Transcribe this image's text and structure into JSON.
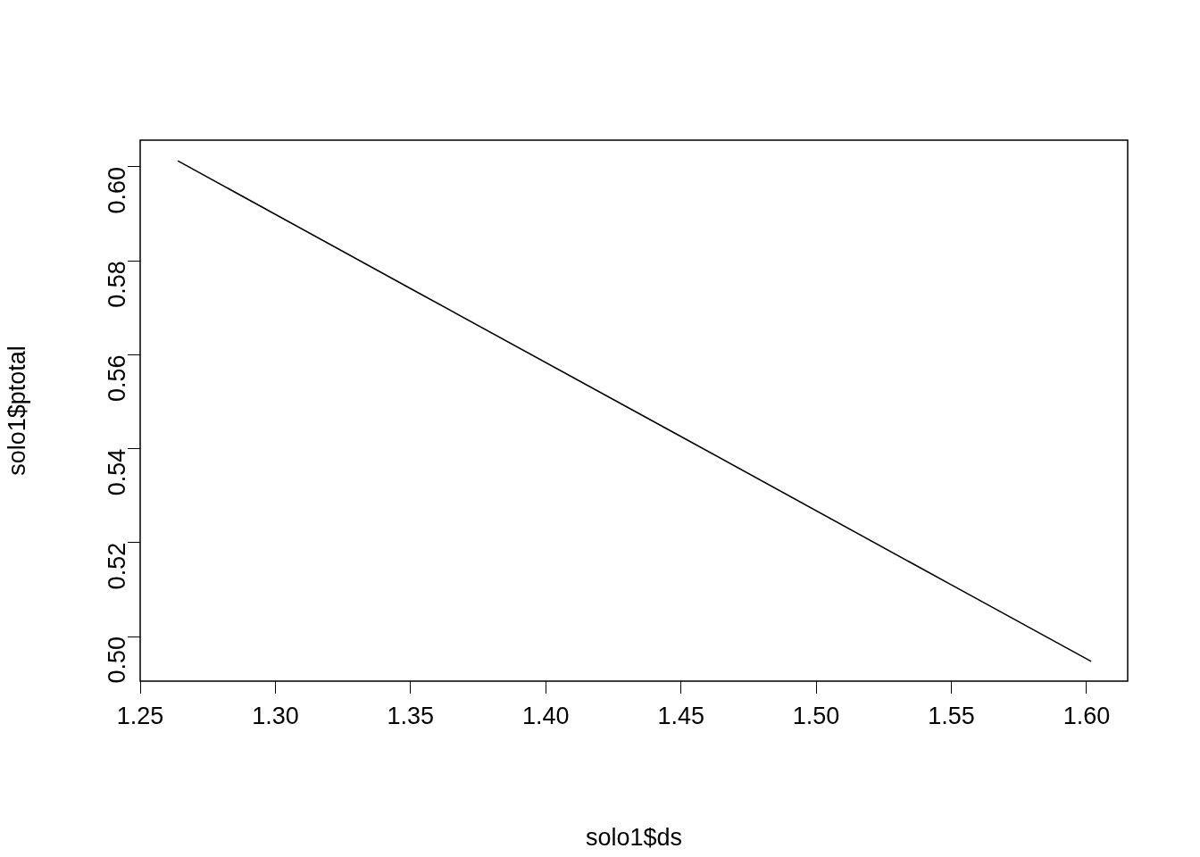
{
  "chart_data": {
    "type": "line",
    "xlabel": "solo1$ds",
    "ylabel": "solo1$ptotal",
    "series": [
      {
        "color": "#000000",
        "x": [
          1.2639,
          1.35,
          1.45,
          1.55,
          1.6017
        ],
        "values": [
          0.6013,
          0.5741,
          0.5426,
          0.511,
          0.4947
        ]
      }
    ],
    "xlim": [
      1.25,
      1.6152
    ],
    "ylim": [
      0.4905,
      0.6057
    ],
    "xticks": [
      {
        "value": 1.25,
        "label": "1.25"
      },
      {
        "value": 1.3,
        "label": "1.30"
      },
      {
        "value": 1.35,
        "label": "1.35"
      },
      {
        "value": 1.4,
        "label": "1.40"
      },
      {
        "value": 1.45,
        "label": "1.45"
      },
      {
        "value": 1.5,
        "label": "1.50"
      },
      {
        "value": 1.55,
        "label": "1.55"
      },
      {
        "value": 1.6,
        "label": "1.60"
      }
    ],
    "yticks": [
      {
        "value": 0.5,
        "label": "0.50"
      },
      {
        "value": 0.52,
        "label": "0.52"
      },
      {
        "value": 0.54,
        "label": "0.54"
      },
      {
        "value": 0.56,
        "label": "0.56"
      },
      {
        "value": 0.58,
        "label": "0.58"
      },
      {
        "value": 0.6,
        "label": "0.60"
      }
    ],
    "grid": false,
    "legend": false,
    "marker": "none",
    "line_style": "solid"
  }
}
